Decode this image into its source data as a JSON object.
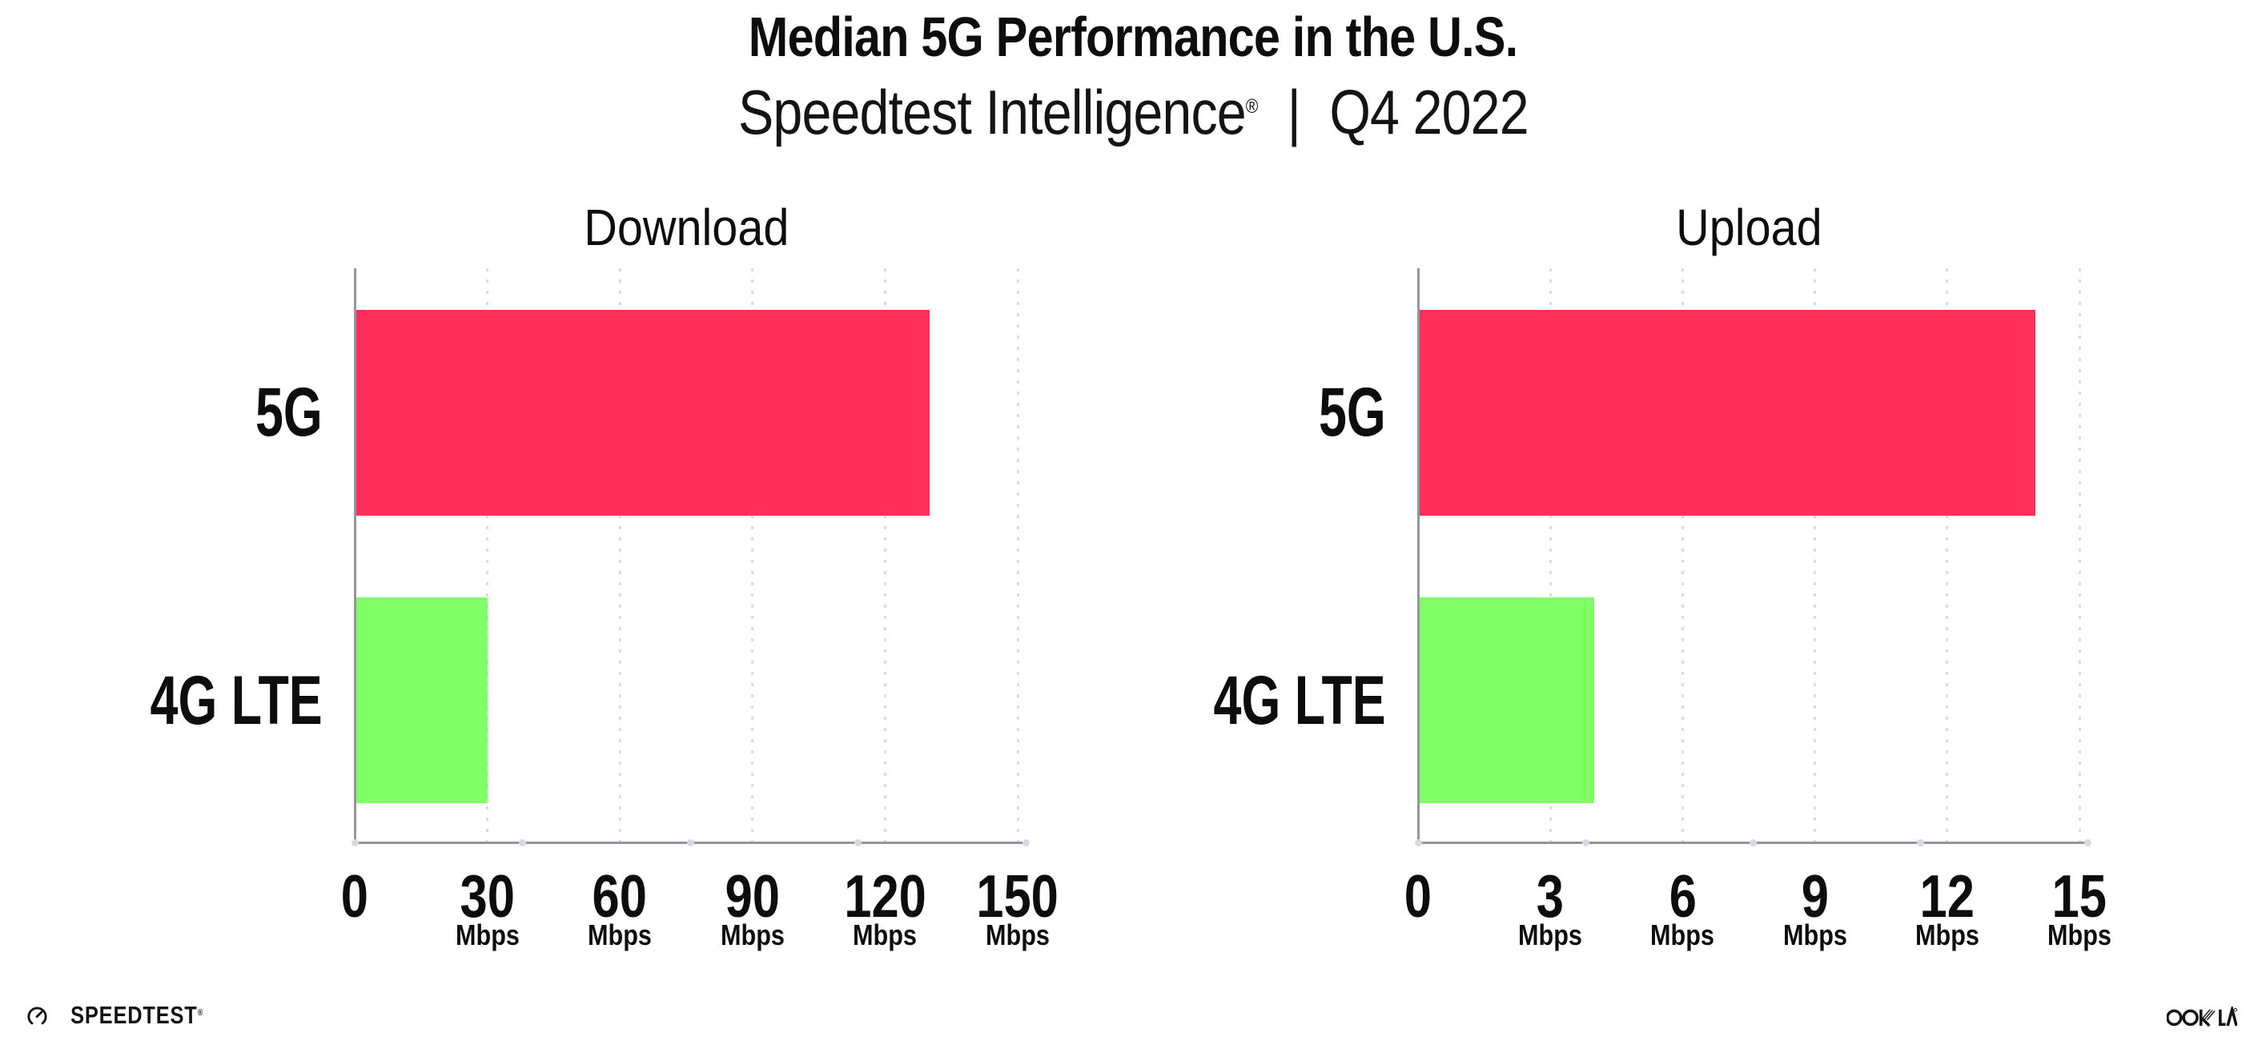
{
  "header": {
    "title": "Median 5G Performance in the U.S.",
    "subtitle_brand": "Speedtest Intelligence",
    "subtitle_reg": "®",
    "subtitle_separator": "|",
    "subtitle_period": "Q4 2022"
  },
  "chart_data": [
    {
      "type": "bar",
      "orientation": "horizontal",
      "title": "Download",
      "categories": [
        "5G",
        "4G LTE"
      ],
      "values": [
        130,
        30
      ],
      "unit": "Mbps",
      "xlim": [
        0,
        150
      ],
      "xticks": [
        0,
        30,
        60,
        90,
        120,
        150
      ],
      "bar_colors": [
        "#ff2e5b",
        "#80ff66"
      ],
      "grid": "dotted-vertical-gridlines"
    },
    {
      "type": "bar",
      "orientation": "horizontal",
      "title": "Upload",
      "categories": [
        "5G",
        "4G LTE"
      ],
      "values": [
        14,
        4
      ],
      "unit": "Mbps",
      "xlim": [
        0,
        15
      ],
      "xticks": [
        0,
        3,
        6,
        9,
        12,
        15
      ],
      "bar_colors": [
        "#ff2e5b",
        "#80ff66"
      ],
      "grid": "dotted-vertical-gridlines"
    }
  ],
  "footer": {
    "speedtest_label": "SPEEDTEST",
    "speedtest_reg": "®",
    "ookla_label": "OOKLA"
  },
  "colors": {
    "bar_5g": "#ff2e5b",
    "bar_4g_lte": "#80ff66",
    "axis": "#95959d",
    "grid": "#d9dbe6",
    "axis_dot": "#d7d9e4",
    "text": "#0d0d0d"
  }
}
